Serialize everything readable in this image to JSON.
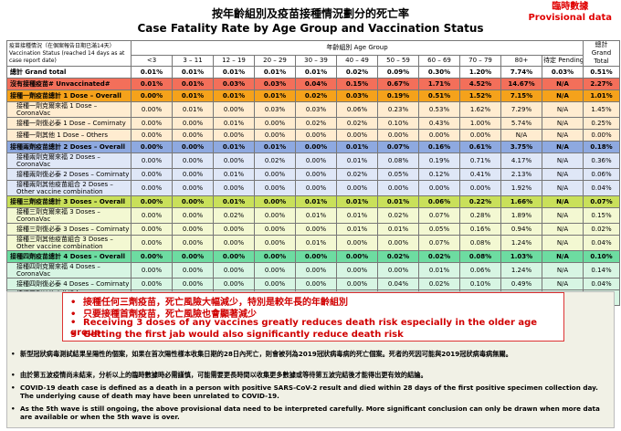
{
  "header": {
    "title_zh": "按年齡組別及疫苗接種情況劃分的死亡率",
    "title_en": "Case Fatality Rate by Age Group and Vaccination Status",
    "provisional_zh": "臨時數據",
    "provisional_en": "Provisional data"
  },
  "table": {
    "vacc_header": "疫苗接種情況（在個案報告日期已滿14天）Vaccination Status (reached 14 days as at case report date)",
    "age_header": "年齡組別 Age Group",
    "total_header": "總計 Grand Total",
    "age_groups": [
      "<3",
      "3 – 11",
      "12 – 19",
      "20 – 29",
      "30 – 39",
      "40 – 49",
      "50 – 59",
      "60 – 69",
      "70 – 79",
      "80+",
      "待定 Pending"
    ],
    "rows": [
      {
        "label": "總計 Grand total",
        "cells": [
          "0.01%",
          "0.01%",
          "0.01%",
          "0.01%",
          "0.01%",
          "0.02%",
          "0.09%",
          "0.30%",
          "1.20%",
          "7.74%",
          "0.03%",
          "0.51%"
        ]
      },
      {
        "label": "沒有接種疫苗# Unvaccinated#",
        "cells": [
          "0.01%",
          "0.01%",
          "0.03%",
          "0.03%",
          "0.04%",
          "0.15%",
          "0.67%",
          "1.71%",
          "4.52%",
          "14.67%",
          "N/A",
          "2.27%"
        ]
      },
      {
        "label": "接種一劑疫苗總計 1 Dose – Overall",
        "cells": [
          "0.00%",
          "0.01%",
          "0.01%",
          "0.01%",
          "0.02%",
          "0.03%",
          "0.19%",
          "0.51%",
          "1.52%",
          "7.15%",
          "N/A",
          "1.01%"
        ]
      },
      {
        "label": "接種一劑克爾來福 1 Dose – CoronaVac",
        "cells": [
          "0.00%",
          "0.01%",
          "0.00%",
          "0.03%",
          "0.03%",
          "0.06%",
          "0.23%",
          "0.53%",
          "1.62%",
          "7.29%",
          "N/A",
          "1.45%"
        ]
      },
      {
        "label": "接種一劑復必泰 1 Dose – Comirnaty",
        "cells": [
          "0.00%",
          "0.00%",
          "0.01%",
          "0.00%",
          "0.02%",
          "0.02%",
          "0.10%",
          "0.43%",
          "1.00%",
          "5.74%",
          "N/A",
          "0.25%"
        ]
      },
      {
        "label": "接種一劑其他 1 Dose – Others",
        "cells": [
          "0.00%",
          "0.00%",
          "0.00%",
          "0.00%",
          "0.00%",
          "0.00%",
          "0.00%",
          "0.00%",
          "0.00%",
          "N/A",
          "N/A",
          "0.00%"
        ]
      },
      {
        "label": "接種兩劑疫苗總計 2 Doses – Overall",
        "cells": [
          "0.00%",
          "0.00%",
          "0.01%",
          "0.01%",
          "0.00%",
          "0.01%",
          "0.07%",
          "0.16%",
          "0.61%",
          "3.75%",
          "N/A",
          "0.18%"
        ]
      },
      {
        "label": "接種兩劑克爾來福 2 Doses – CoronaVac",
        "cells": [
          "0.00%",
          "0.00%",
          "0.00%",
          "0.02%",
          "0.00%",
          "0.01%",
          "0.08%",
          "0.19%",
          "0.71%",
          "4.17%",
          "N/A",
          "0.36%"
        ]
      },
      {
        "label": "接種兩劑復必泰 2 Doses – Comirnaty",
        "cells": [
          "0.00%",
          "0.00%",
          "0.01%",
          "0.00%",
          "0.00%",
          "0.02%",
          "0.05%",
          "0.12%",
          "0.41%",
          "2.13%",
          "N/A",
          "0.06%"
        ]
      },
      {
        "label": "接種兩劑其他疫苗組合 2 Doses – Other vaccine combination",
        "cells": [
          "0.00%",
          "0.00%",
          "0.00%",
          "0.00%",
          "0.00%",
          "0.00%",
          "0.00%",
          "0.00%",
          "0.00%",
          "1.92%",
          "N/A",
          "0.04%"
        ]
      },
      {
        "label": "接種三劑疫苗總計 3 Doses – Overall",
        "cells": [
          "0.00%",
          "0.00%",
          "0.01%",
          "0.00%",
          "0.01%",
          "0.01%",
          "0.01%",
          "0.06%",
          "0.22%",
          "1.66%",
          "N/A",
          "0.07%"
        ]
      },
      {
        "label": "接種三劑克爾來福 3 Doses – CoronaVac",
        "cells": [
          "0.00%",
          "0.00%",
          "0.02%",
          "0.00%",
          "0.01%",
          "0.01%",
          "0.02%",
          "0.07%",
          "0.28%",
          "1.89%",
          "N/A",
          "0.15%"
        ]
      },
      {
        "label": "接種三劑復必泰 3 Doses – Comirnaty",
        "cells": [
          "0.00%",
          "0.00%",
          "0.00%",
          "0.00%",
          "0.00%",
          "0.01%",
          "0.01%",
          "0.05%",
          "0.16%",
          "0.94%",
          "N/A",
          "0.02%"
        ]
      },
      {
        "label": "接種三劑其他疫苗組合 3 Doses – Other vaccine combination",
        "cells": [
          "0.00%",
          "0.00%",
          "0.00%",
          "0.00%",
          "0.01%",
          "0.00%",
          "0.00%",
          "0.07%",
          "0.08%",
          "1.24%",
          "N/A",
          "0.04%"
        ]
      },
      {
        "label": "接種四劑疫苗總計 4 Doses – Overall",
        "cells": [
          "0.00%",
          "0.00%",
          "0.00%",
          "0.00%",
          "0.00%",
          "0.00%",
          "0.02%",
          "0.02%",
          "0.08%",
          "1.03%",
          "N/A",
          "0.10%"
        ]
      },
      {
        "label": "接種四劑克爾來福 4 Doses – CoronaVac",
        "cells": [
          "0.00%",
          "0.00%",
          "0.00%",
          "0.00%",
          "0.00%",
          "0.00%",
          "0.00%",
          "0.01%",
          "0.06%",
          "1.24%",
          "N/A",
          "0.14%"
        ]
      },
      {
        "label": "接種四劑復必泰 4 Doses – Comirnaty",
        "cells": [
          "0.00%",
          "0.00%",
          "0.00%",
          "0.00%",
          "0.00%",
          "0.00%",
          "0.04%",
          "0.02%",
          "0.10%",
          "0.49%",
          "N/A",
          "0.04%"
        ]
      },
      {
        "label": "接種四劑其他疫苗組合 4 Doses – Other vaccine combination",
        "cells": [
          "0.00%",
          "0.00%",
          "0.00%",
          "0.00%",
          "0.00%",
          "0.00%",
          "0.00%",
          "0.03%",
          "0.23%",
          "0.77%",
          "N/A",
          "0.09%"
        ]
      }
    ]
  },
  "bullets": [
    "接種任何三劑疫苗，死亡風險大幅減少，特別是較年長的年齡組別",
    "只要接種首劑疫苗，死亡風險也會顯著減少",
    "Receiving 3 doses of any vaccines greatly reduces death risk especially in the older age group",
    "Getting the first jab would also significantly reduce death risk"
  ],
  "footnotes": [
    "新型冠狀病毒測試結果呈陽性的個案，如果在首次陽性樣本收集日期的28日內死亡，則會被列為2019冠狀病毒病的死亡個案。死者的死因可能與2019冠狀病毒病無關。",
    "由於第五波疫情尚未結束，分析以上的臨時數據時必需謹慎，可能需要更長時間以收集更多數據或等待第五波完結後才能得出更有效的結論。",
    "COVID-19 death case is defined as a death in a person with positive SARS-CoV-2 result and died within 28 days of the first positive specimen collection day. The underlying cause of death may have been unrelated to COVID-19.",
    "As the 5th wave is still ongoing, the above provisional data need to be interpreted carefully. More significant conclusion can only be drawn when more data are available or when the 5th wave is over."
  ],
  "colors": {
    "grand": "#ffffff",
    "unvacc": "#f36f5a",
    "dose1": "#f5a21b",
    "dose1_sub": "#ffecd0",
    "dose2": "#8ea9e0",
    "dose2_sub": "#dfe7f7",
    "dose3": "#c9e05a",
    "dose3_sub": "#f3f8d2",
    "dose4": "#6ddca1",
    "dose4_sub": "#d7f5e3",
    "notes_bg": "#f1f1e6",
    "alert": "#d00000"
  }
}
